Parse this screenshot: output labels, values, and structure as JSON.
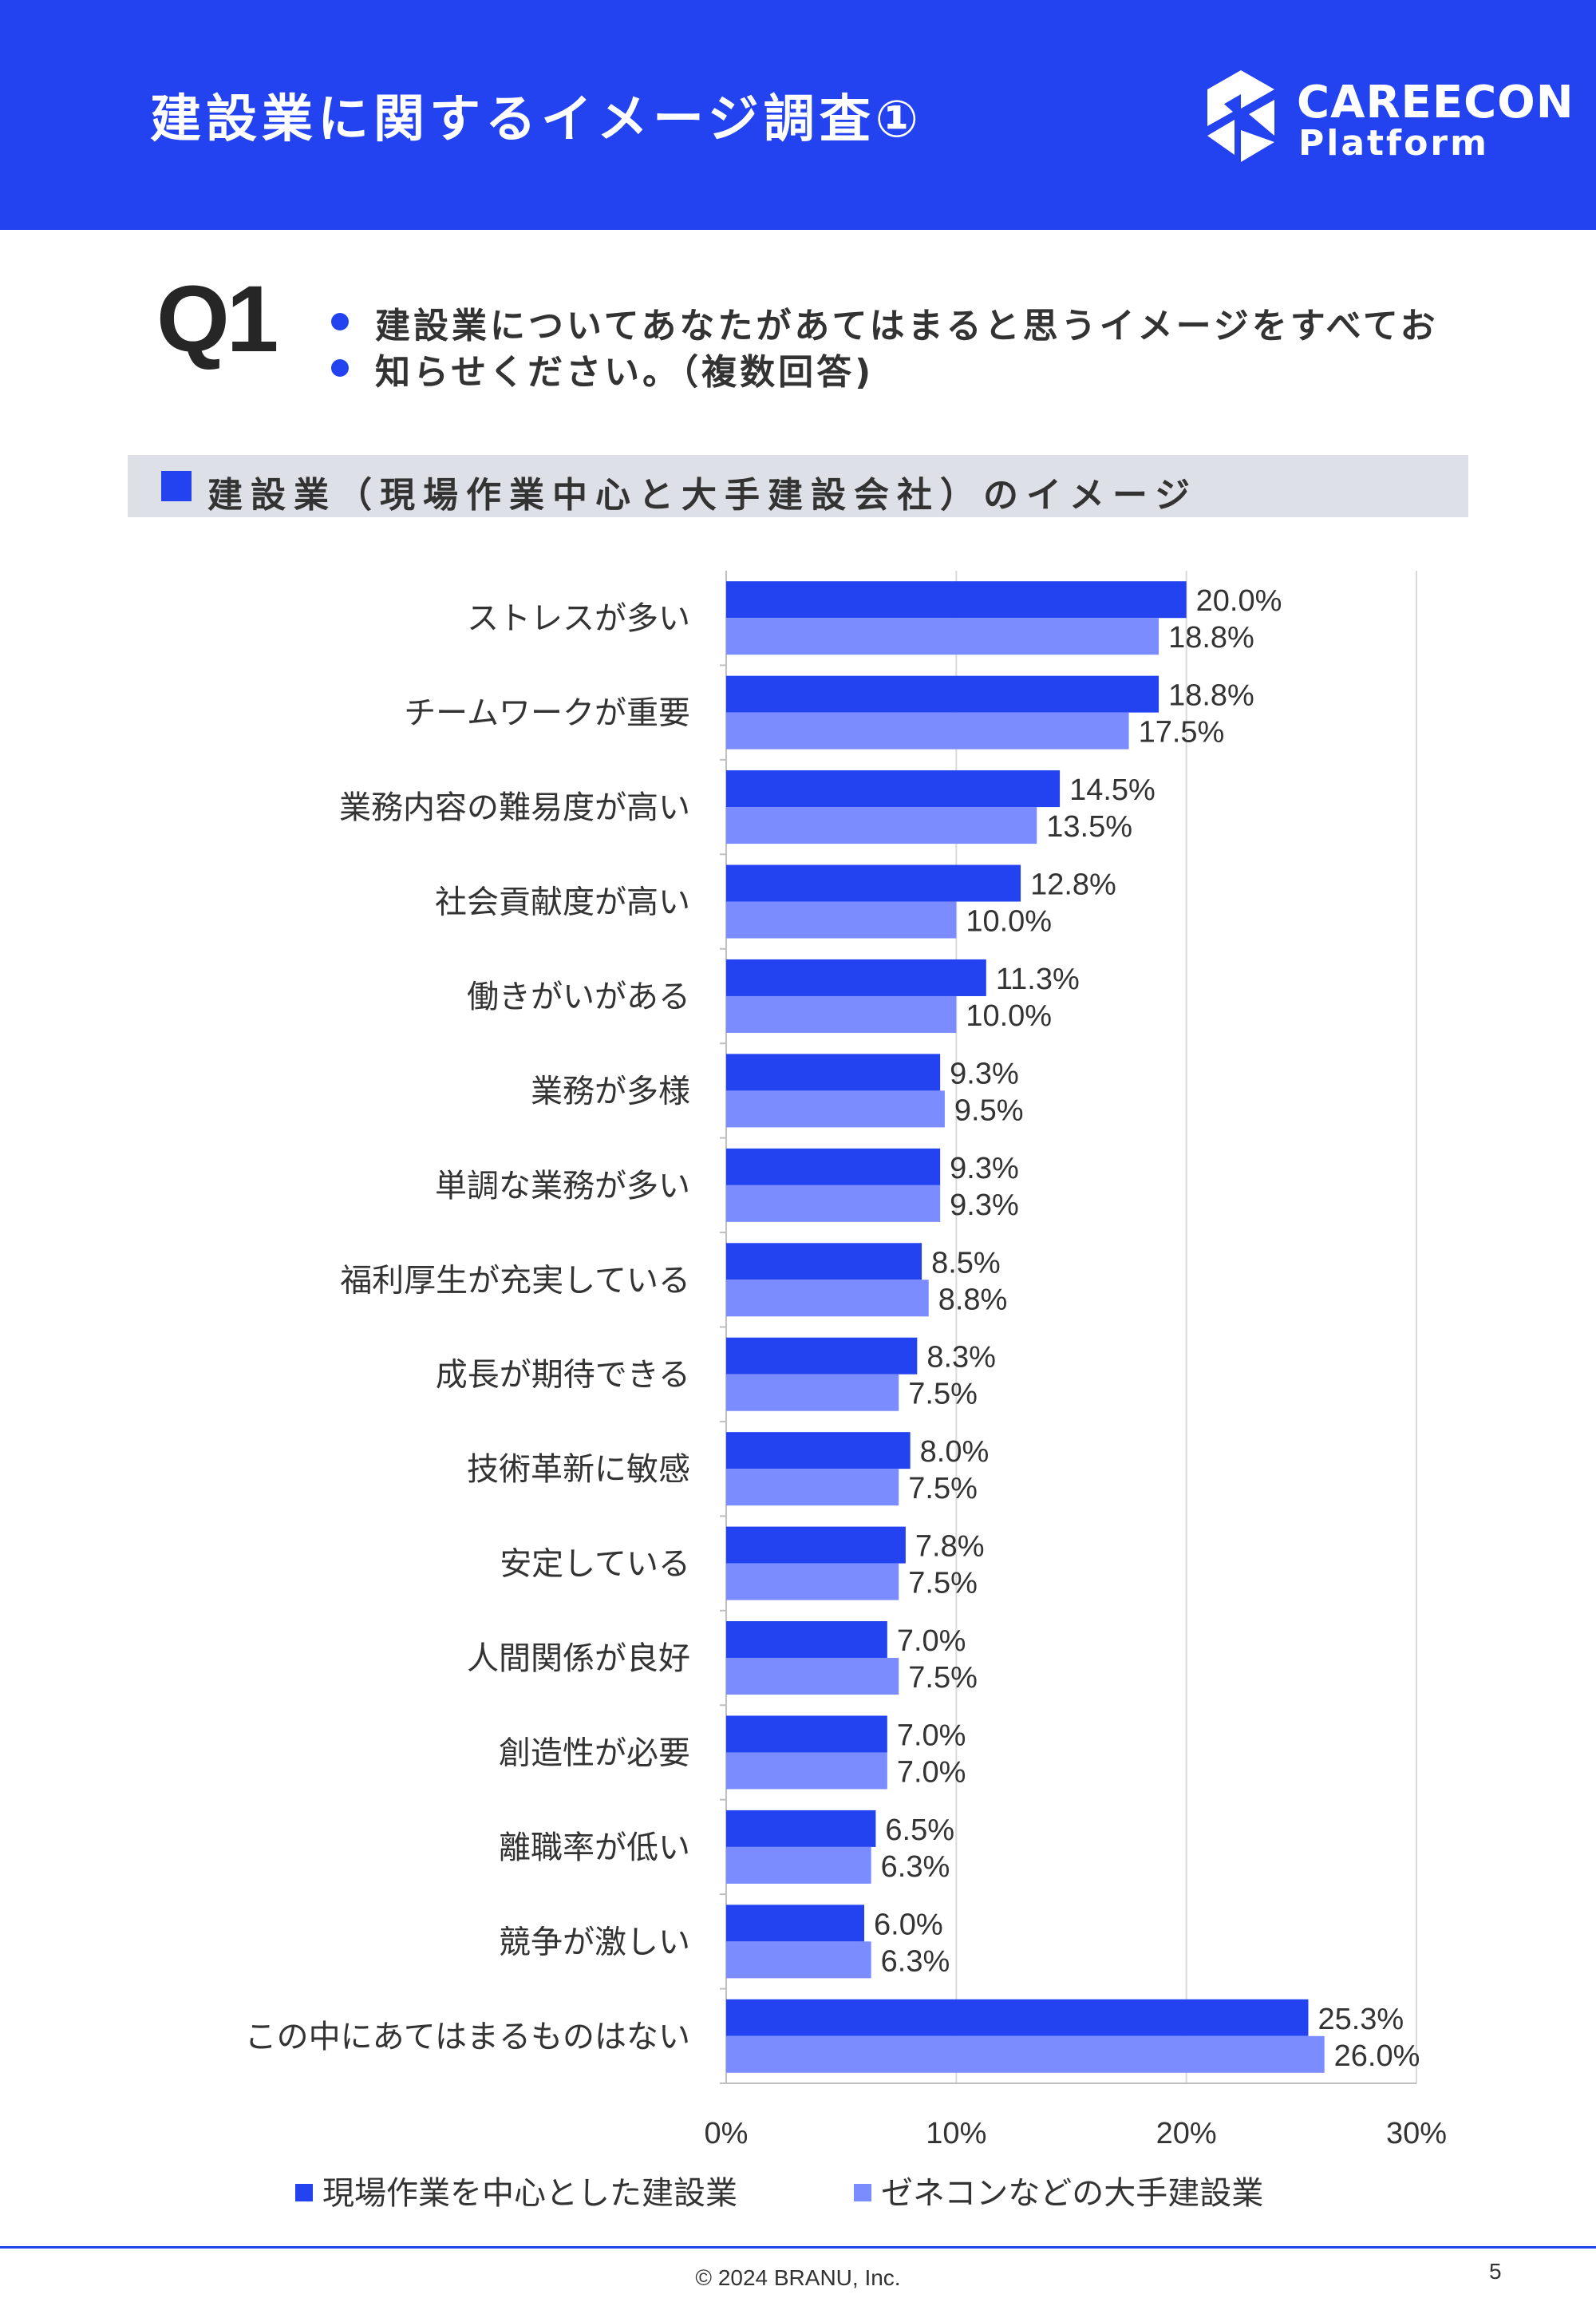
{
  "header": {
    "title": "建設業に関するイメージ調査①",
    "logo_name": "CAREECON",
    "logo_sub": "Platform"
  },
  "question": {
    "label": "Q1",
    "text": "建設業についてあなたがあてはまると思うイメージをすべてお知らせください。（複数回答)"
  },
  "section": {
    "title": "建設業（現場作業中心と大手建設会社）のイメージ"
  },
  "colors": {
    "accent": "#2443f0",
    "series1": "#2443f0",
    "series2": "#7a8cff"
  },
  "chart_data": {
    "type": "bar",
    "orientation": "horizontal",
    "categories": [
      "ストレスが多い",
      "チームワークが重要",
      "業務内容の難易度が高い",
      "社会貢献度が高い",
      "働きがいがある",
      "業務が多様",
      "単調な業務が多い",
      "福利厚生が充実している",
      "成長が期待できる",
      "技術革新に敏感",
      "安定している",
      "人間関係が良好",
      "創造性が必要",
      "離職率が低い",
      "競争が激しい",
      "この中にあてはまるものはない"
    ],
    "series": [
      {
        "name": "現場作業を中心とした建設業",
        "values": [
          20.0,
          18.8,
          14.5,
          12.8,
          11.3,
          9.3,
          9.3,
          8.5,
          8.3,
          8.0,
          7.8,
          7.0,
          7.0,
          6.5,
          6.0,
          25.3
        ]
      },
      {
        "name": "ゼネコンなどの大手建設業",
        "values": [
          18.8,
          17.5,
          13.5,
          10.0,
          10.0,
          9.5,
          9.3,
          8.8,
          7.5,
          7.5,
          7.5,
          7.5,
          7.0,
          6.3,
          6.3,
          26.0
        ]
      }
    ],
    "xlim": [
      0,
      30
    ],
    "xticks": [
      "0%",
      "10%",
      "20%",
      "30%"
    ],
    "grid": true,
    "legend_position": "bottom"
  },
  "footer": {
    "copyright": "© 2024 BRANU, Inc.",
    "page": "5"
  }
}
